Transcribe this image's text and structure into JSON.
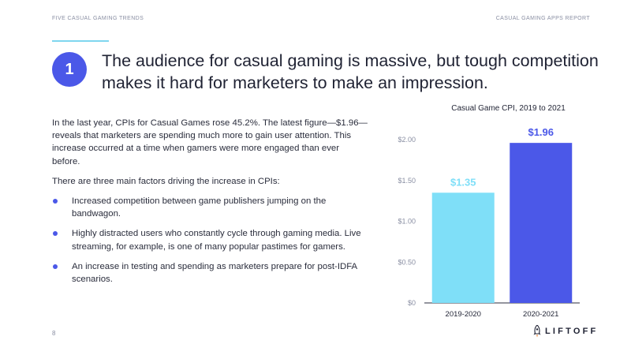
{
  "header": {
    "left": "FIVE CASUAL GAMING TRENDS",
    "right": "CASUAL GAMING APPS REPORT"
  },
  "colors": {
    "accent_line": "#7fd6ef",
    "badge": "#4b58e8",
    "bullet": "#4b58e8",
    "bar_light": "#7fdff8",
    "bar_dark": "#4b58e8"
  },
  "section": {
    "number": "1",
    "headline": "The audience for casual gaming is massive, but tough competition makes it hard for marketers to make an impression."
  },
  "body": {
    "paragraph1": "In the last year, CPIs for Casual Games rose 45.2%. The latest figure—$1.96—reveals that marketers are spending much more to gain user attention. This increase occurred at a time when gamers were more engaged than ever before.",
    "paragraph2": "There are three main factors driving the increase in CPIs:",
    "bullets": [
      "Increased competition between game publishers jumping on the bandwagon.",
      "Highly distracted users who constantly cycle through gaming media. Live streaming, for example, is one of many popular pastimes for gamers.",
      "An increase in testing and spending as marketers prepare for post-IDFA scenarios."
    ]
  },
  "page_number": "8",
  "logo": {
    "text": "LIFTOFF",
    "icon": "rocket-icon"
  },
  "chart_data": {
    "type": "bar",
    "title": "Casual Game CPI, 2019 to 2021",
    "categories": [
      "2019-2020",
      "2020-2021"
    ],
    "values": [
      1.35,
      1.96
    ],
    "value_labels": [
      "$1.35",
      "$1.96"
    ],
    "yticks": [
      0,
      0.5,
      1.0,
      1.5,
      2.0
    ],
    "ytick_labels": [
      "$0",
      "$0.50",
      "$1.00",
      "$1.50",
      "$2.00"
    ],
    "ylim": [
      0,
      2.0
    ],
    "xlabel": "",
    "ylabel": "",
    "grid": false
  }
}
